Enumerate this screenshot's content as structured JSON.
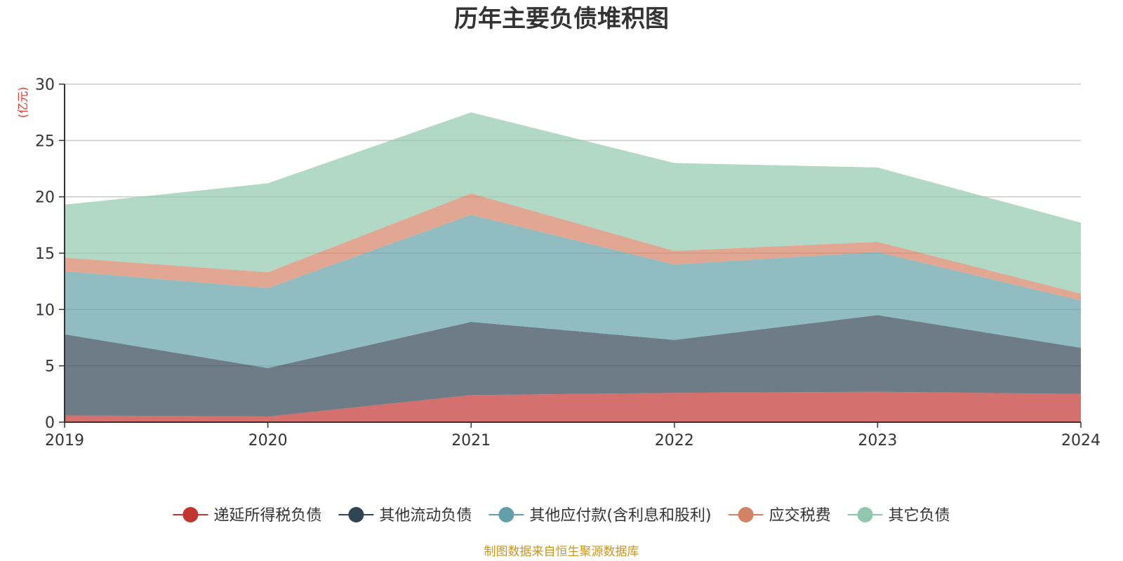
{
  "chart_data": {
    "type": "area",
    "stacked": true,
    "title": "历年主要负债堆积图",
    "unit_label": "(亿元)",
    "source": "制图数据来自恒生聚源数据库",
    "x": [
      "2019",
      "2020",
      "2021",
      "2022",
      "2023",
      "2024"
    ],
    "ylim": [
      0,
      30
    ],
    "yticks": [
      "0",
      "5",
      "10",
      "15",
      "20",
      "25",
      "30"
    ],
    "grid": true,
    "legend_position": "bottom",
    "series": [
      {
        "name": "递延所得税负债",
        "color": "#c23531",
        "values": [
          0.6,
          0.5,
          2.4,
          2.6,
          2.7,
          2.5
        ]
      },
      {
        "name": "其他流动负债",
        "color": "#2f4554",
        "values": [
          7.2,
          4.3,
          6.5,
          4.7,
          6.8,
          4.1
        ]
      },
      {
        "name": "其他应付款(含利息和股利)",
        "color": "#61a0a8",
        "values": [
          5.6,
          7.1,
          9.5,
          6.7,
          5.6,
          4.2
        ]
      },
      {
        "name": "应交税费",
        "color": "#d48265",
        "values": [
          1.2,
          1.4,
          1.9,
          1.2,
          0.9,
          0.6
        ]
      },
      {
        "name": "其它负债",
        "color": "#91c7ae",
        "values": [
          4.7,
          7.9,
          7.2,
          7.8,
          6.6,
          6.3
        ]
      }
    ],
    "colors": {
      "unit_label": "#e2372a",
      "source": "#c8961e",
      "axis": "#333333",
      "grid": "#c8c8c8"
    }
  }
}
